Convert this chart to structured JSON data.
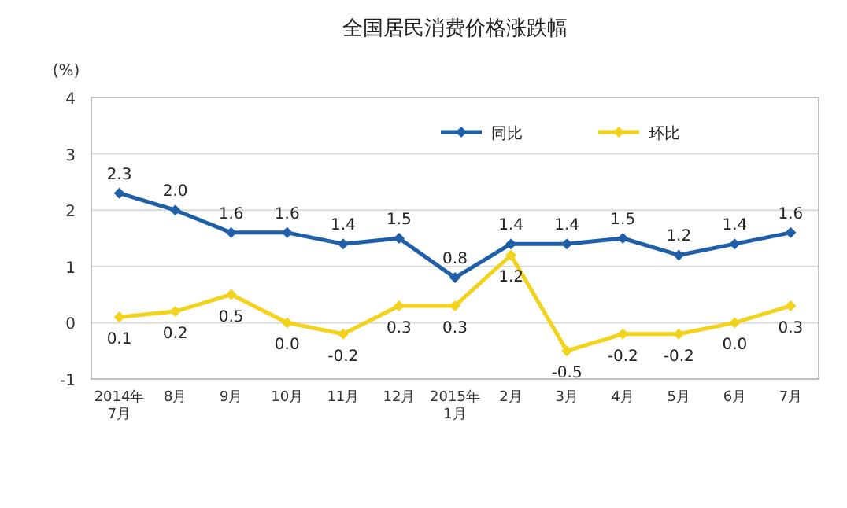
{
  "chart_data": {
    "type": "line",
    "title": "全国居民消费价格涨跌幅",
    "ylabel": "(%)",
    "categories": [
      "2014年\n7月",
      "8月",
      "9月",
      "10月",
      "11月",
      "12月",
      "2015年\n1月",
      "2月",
      "3月",
      "4月",
      "5月",
      "6月",
      "7月"
    ],
    "series": [
      {
        "name": "同比",
        "color": "#1f5fa8",
        "values": [
          2.3,
          2.0,
          1.6,
          1.6,
          1.4,
          1.5,
          0.8,
          1.4,
          1.4,
          1.5,
          1.2,
          1.4,
          1.6
        ],
        "value_labels": [
          "2.3",
          "2.0",
          "1.6",
          "1.6",
          "1.4",
          "1.5",
          "0.8",
          "1.4",
          "1.4",
          "1.5",
          "1.2",
          "1.4",
          "1.6"
        ]
      },
      {
        "name": "环比",
        "color": "#f2d21b",
        "values": [
          0.1,
          0.2,
          0.5,
          0.0,
          -0.2,
          0.3,
          0.3,
          1.2,
          -0.5,
          -0.2,
          -0.2,
          0.0,
          0.3
        ],
        "value_labels": [
          "0.1",
          "0.2",
          "0.5",
          "0.0",
          "-0.2",
          "0.3",
          "0.3",
          "1.2",
          "-0.5",
          "-0.2",
          "-0.2",
          "0.0",
          "0.3"
        ]
      }
    ],
    "ylim": [
      -1,
      4
    ],
    "yticks": [
      -1,
      0,
      1,
      2,
      3,
      4
    ],
    "grid": "y",
    "legend": "top right",
    "marker": "diamond",
    "line_style": "solid"
  }
}
